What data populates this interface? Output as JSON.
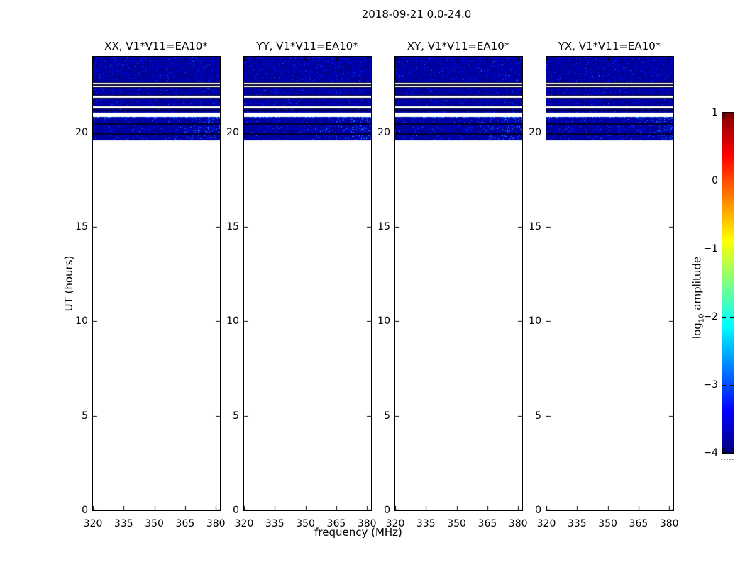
{
  "chart_data": {
    "type": "heatmap",
    "figure_title": "2018-09-21 0.0-24.0",
    "xlabel": "frequency (MHz)",
    "ylabel": "UT (hours)",
    "x_range_mhz": [
      320,
      382
    ],
    "y_range_hours": [
      0,
      24
    ],
    "x_ticks": [
      {
        "v": 320,
        "label": "320"
      },
      {
        "v": 335,
        "label": "335"
      },
      {
        "v": 350,
        "label": "350"
      },
      {
        "v": 365,
        "label": "365"
      },
      {
        "v": 380,
        "label": "380"
      }
    ],
    "y_ticks": [
      {
        "v": 0,
        "label": "0"
      },
      {
        "v": 5,
        "label": "5"
      },
      {
        "v": 10,
        "label": "10"
      },
      {
        "v": 15,
        "label": "15"
      },
      {
        "v": 20,
        "label": "20"
      }
    ],
    "panels": [
      {
        "title": "XX, V1*V11=EA10*"
      },
      {
        "title": "YY, V1*V11=EA10*"
      },
      {
        "title": "XY, V1*V11=EA10*"
      },
      {
        "title": "YX, V1*V11=EA10*"
      }
    ],
    "colorbar": {
      "label_pre": "log",
      "label_sub": "10",
      "label_post": " amplitude",
      "range": [
        -4,
        1
      ],
      "colormap": "jet",
      "ticks": [
        {
          "v": 1,
          "label": "1"
        },
        {
          "v": 0,
          "label": "0"
        },
        {
          "v": -1,
          "label": "−1"
        },
        {
          "v": -2,
          "label": "−2"
        },
        {
          "v": -3,
          "label": "−3"
        },
        {
          "v": -4,
          "label": "−4"
        }
      ],
      "gradient_stops_top_to_bottom": [
        "#7f0000",
        "#ff0000",
        "#ffff00",
        "#00ffff",
        "#0000ff",
        "#00007f"
      ]
    },
    "colors": {
      "noise_base": "#000090",
      "noise_speckle": "#1a40ff",
      "dark_line": "#000028",
      "background": "#ffffff"
    },
    "data_bands_ut_hours": [
      {
        "ut0": 22.62,
        "ut1": 24.0,
        "kind": "noise"
      },
      {
        "ut0": 22.54,
        "ut1": 22.62,
        "kind": "gap",
        "border": true
      },
      {
        "ut0": 22.46,
        "ut1": 22.54,
        "kind": "dark"
      },
      {
        "ut0": 22.38,
        "ut1": 22.46,
        "kind": "gap",
        "border": true
      },
      {
        "ut0": 21.95,
        "ut1": 22.38,
        "kind": "noise"
      },
      {
        "ut0": 21.82,
        "ut1": 21.95,
        "kind": "gap",
        "border": true
      },
      {
        "ut0": 21.39,
        "ut1": 21.82,
        "kind": "noise"
      },
      {
        "ut0": 21.28,
        "ut1": 21.39,
        "kind": "gap",
        "border": true
      },
      {
        "ut0": 21.18,
        "ut1": 21.28,
        "kind": "noise"
      },
      {
        "ut0": 21.11,
        "ut1": 21.18,
        "kind": "dark"
      },
      {
        "ut0": 21.03,
        "ut1": 21.11,
        "kind": "noise"
      },
      {
        "ut0": 20.8,
        "ut1": 21.03,
        "kind": "gap"
      },
      {
        "ut0": 20.49,
        "ut1": 20.8,
        "kind": "noise_bright",
        "top_bright": true
      },
      {
        "ut0": 20.41,
        "ut1": 20.49,
        "kind": "dark"
      },
      {
        "ut0": 19.96,
        "ut1": 20.41,
        "kind": "noise_bright"
      },
      {
        "ut0": 19.89,
        "ut1": 19.96,
        "kind": "dark"
      },
      {
        "ut0": 19.56,
        "ut1": 19.89,
        "kind": "noise_bright"
      }
    ]
  }
}
